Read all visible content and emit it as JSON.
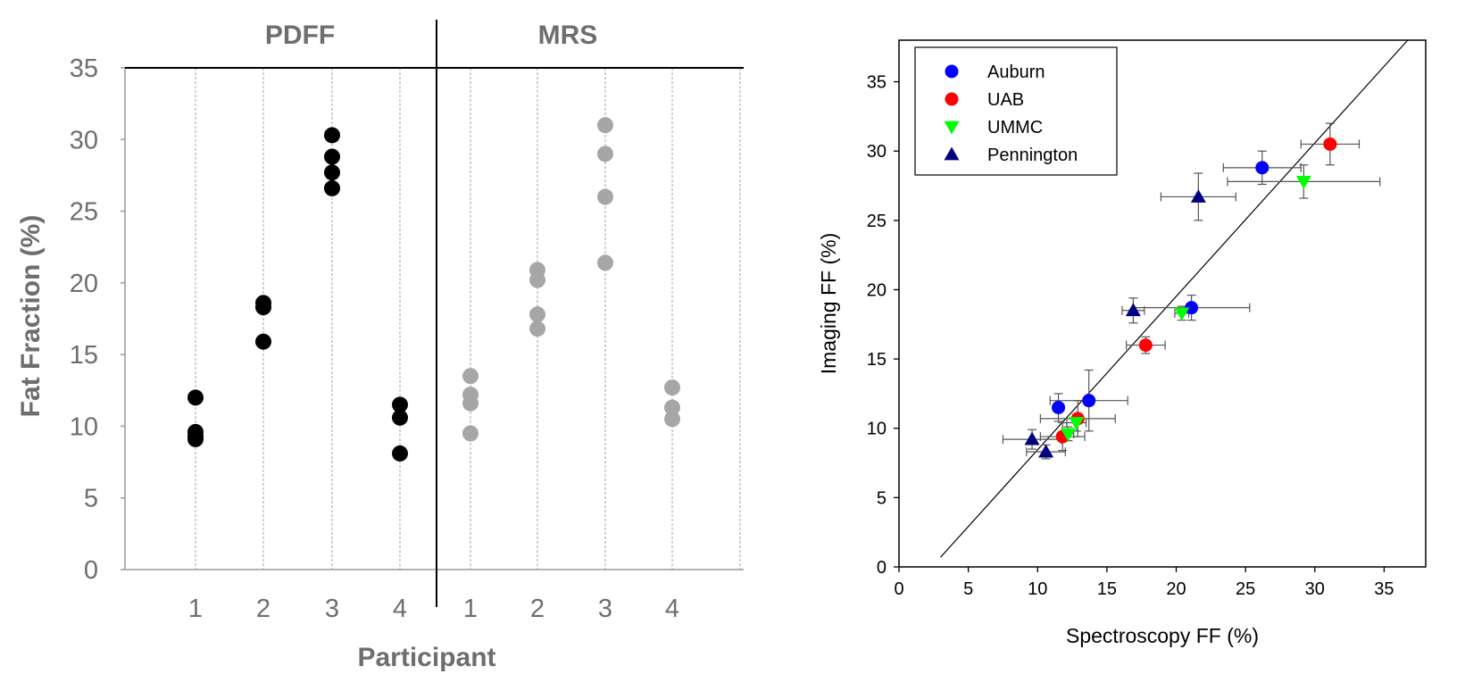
{
  "chart_data": [
    {
      "type": "scatter",
      "title": "",
      "panels": [
        {
          "name": "PDFF",
          "dot_color": "#000000"
        },
        {
          "name": "MRS",
          "dot_color": "#a6a6a6"
        }
      ],
      "xlabel": "Participant",
      "ylabel": "Fat Fraction (%)",
      "ylim": [
        0,
        35
      ],
      "y_ticks": [
        "0",
        "5",
        "10",
        "15",
        "20",
        "25",
        "30",
        "35"
      ],
      "participants": [
        "1",
        "2",
        "3",
        "4"
      ],
      "series": [
        {
          "name": "PDFF",
          "points": [
            {
              "participant": 1,
              "values": [
                12.0,
                9.6,
                9.3,
                9.1
              ]
            },
            {
              "participant": 2,
              "values": [
                18.6,
                18.3,
                15.9
              ]
            },
            {
              "participant": 3,
              "values": [
                30.3,
                28.8,
                27.7,
                26.6
              ]
            },
            {
              "participant": 4,
              "values": [
                11.5,
                10.6,
                8.1
              ]
            }
          ]
        },
        {
          "name": "MRS",
          "points": [
            {
              "participant": 1,
              "values": [
                13.5,
                12.2,
                11.6,
                9.5
              ]
            },
            {
              "participant": 2,
              "values": [
                20.9,
                20.2,
                17.8,
                16.8
              ]
            },
            {
              "participant": 3,
              "values": [
                31.0,
                29.0,
                26.0,
                21.4
              ]
            },
            {
              "participant": 4,
              "values": [
                12.7,
                11.3,
                10.5
              ]
            }
          ]
        }
      ]
    },
    {
      "type": "scatter",
      "title": "",
      "xlabel": "Spectroscopy FF (%)",
      "ylabel": "Imaging FF (%)",
      "xlim": [
        0,
        38
      ],
      "ylim": [
        0,
        38
      ],
      "x_ticks": [
        "0",
        "5",
        "10",
        "15",
        "20",
        "25",
        "30",
        "35"
      ],
      "y_ticks": [
        "0",
        "5",
        "10",
        "15",
        "20",
        "25",
        "30",
        "35"
      ],
      "legend_position": "top-left",
      "identity_line": {
        "x": [
          3.0,
          36.7
        ],
        "y": [
          0.7,
          38.0
        ]
      },
      "series": [
        {
          "name": "Auburn",
          "marker": "circle",
          "color": "#0000ff",
          "points": [
            {
              "x": 26.2,
              "y": 28.8,
              "xerr": 2.8,
              "yerr": 1.2
            },
            {
              "x": 21.1,
              "y": 18.7,
              "xerr": 4.2,
              "yerr": 0.9
            },
            {
              "x": 13.7,
              "y": 12.0,
              "xerr": 2.8,
              "yerr": 2.2
            },
            {
              "x": 11.5,
              "y": 11.5,
              "xerr": 0.0,
              "yerr": 1.0
            }
          ]
        },
        {
          "name": "UAB",
          "marker": "circle",
          "color": "#ff0000",
          "points": [
            {
              "x": 31.1,
              "y": 30.5,
              "xerr": 2.1,
              "yerr": 1.5
            },
            {
              "x": 17.8,
              "y": 16.0,
              "xerr": 1.4,
              "yerr": 0.6
            },
            {
              "x": 12.9,
              "y": 10.7,
              "xerr": 2.7,
              "yerr": 1.3
            },
            {
              "x": 11.8,
              "y": 9.4,
              "xerr": 1.6,
              "yerr": 1.0
            }
          ]
        },
        {
          "name": "UMMC",
          "marker": "triangle-down",
          "color": "#00ff00",
          "points": [
            {
              "x": 29.2,
              "y": 27.8,
              "xerr": 5.5,
              "yerr": 1.2
            },
            {
              "x": 20.4,
              "y": 18.3,
              "xerr": 0.5,
              "yerr": 0.5
            },
            {
              "x": 12.8,
              "y": 10.4,
              "xerr": 0.7,
              "yerr": 0.6
            },
            {
              "x": 12.2,
              "y": 9.6,
              "xerr": 0.4,
              "yerr": 0.5
            }
          ]
        },
        {
          "name": "Pennington",
          "marker": "triangle-up",
          "color": "#000080",
          "points": [
            {
              "x": 21.6,
              "y": 26.7,
              "xerr": 2.7,
              "yerr": 1.7
            },
            {
              "x": 16.9,
              "y": 18.5,
              "xerr": 0.8,
              "yerr": 0.9
            },
            {
              "x": 9.6,
              "y": 9.2,
              "xerr": 2.1,
              "yerr": 0.7
            },
            {
              "x": 10.6,
              "y": 8.3,
              "xerr": 1.4,
              "yerr": 0.5
            }
          ]
        }
      ]
    }
  ]
}
